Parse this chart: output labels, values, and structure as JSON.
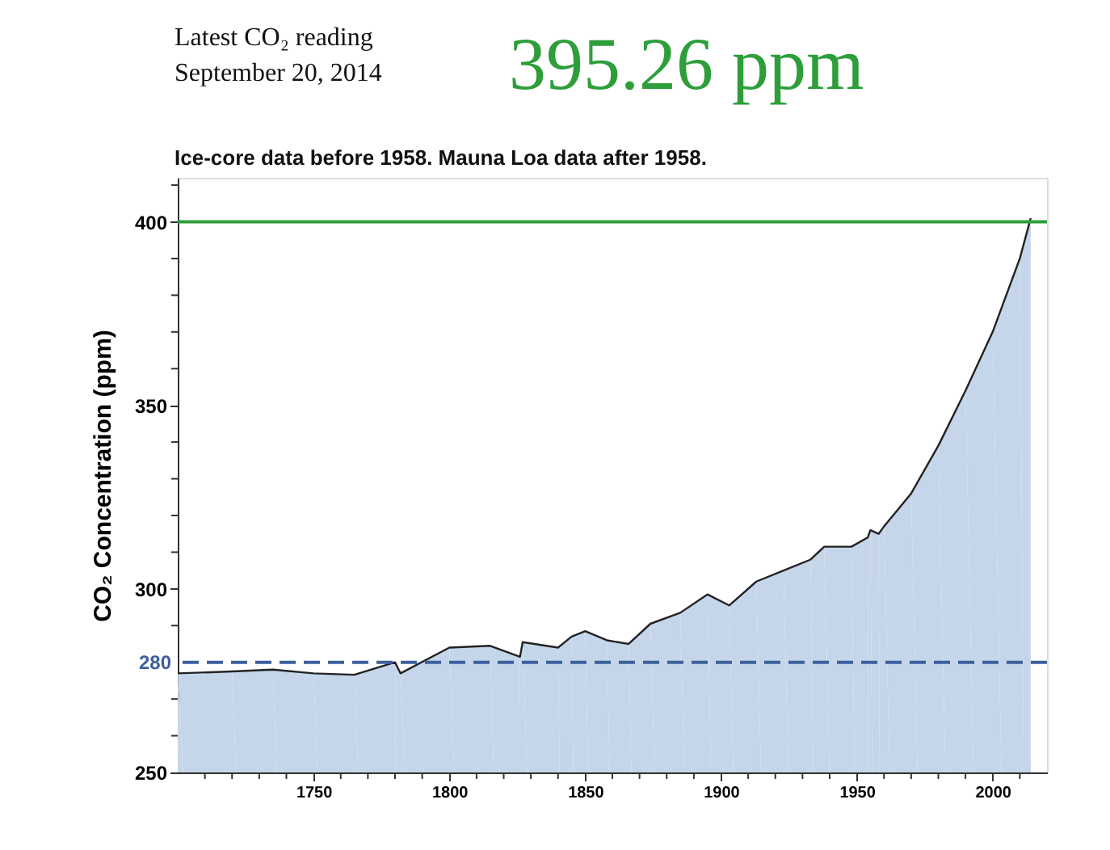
{
  "chart_data": {
    "type": "area",
    "title": "Latest CO₂ reading",
    "subtitle": "September 20, 2014",
    "annotations": [
      "395.26 ppm",
      "Ice-core data before 1958. Mauna Loa data after 1958."
    ],
    "ylabel": "CO₂ Concentration (ppm)",
    "x": [
      1700,
      1720,
      1735,
      1750,
      1765,
      1780,
      1782,
      1800,
      1815,
      1826,
      1827,
      1840,
      1845,
      1850,
      1858,
      1866,
      1874,
      1885,
      1895,
      1903,
      1913,
      1923,
      1933,
      1938,
      1948,
      1954,
      1955,
      1958,
      1960,
      1970,
      1980,
      1990,
      2000,
      2010,
      2014
    ],
    "series": [
      {
        "color": "#c5d6ea",
        "values": [
          277,
          277.5,
          278,
          277,
          276.6,
          280,
          277,
          284,
          284.5,
          281.5,
          285.5,
          284,
          287,
          288.5,
          286,
          285,
          290.5,
          293.5,
          298.5,
          295.5,
          302,
          305,
          308,
          311.5,
          311.5,
          314,
          316,
          315,
          317,
          326,
          339,
          354,
          370,
          390,
          401
        ]
      }
    ],
    "xlim": [
      1700,
      2020
    ],
    "ylim": [
      250,
      412
    ],
    "xticks": [
      {
        "value": 1710,
        "label": null
      },
      {
        "value": 1720,
        "label": null
      },
      {
        "value": 1730,
        "label": null
      },
      {
        "value": 1740,
        "label": null
      },
      1750,
      {
        "value": 1760,
        "label": null
      },
      {
        "value": 1770,
        "label": null
      },
      {
        "value": 1780,
        "label": null
      },
      {
        "value": 1790,
        "label": null
      },
      1800,
      {
        "value": 1810,
        "label": null
      },
      {
        "value": 1820,
        "label": null
      },
      {
        "value": 1830,
        "label": null
      },
      {
        "value": 1840,
        "label": null
      },
      1850,
      {
        "value": 1860,
        "label": null
      },
      {
        "value": 1870,
        "label": null
      },
      {
        "value": 1880,
        "label": null
      },
      {
        "value": 1890,
        "label": null
      },
      1900,
      {
        "value": 1910,
        "label": null
      },
      {
        "value": 1920,
        "label": null
      },
      {
        "value": 1930,
        "label": null
      },
      {
        "value": 1940,
        "label": null
      },
      1950,
      {
        "value": 1960,
        "label": null
      },
      {
        "value": 1970,
        "label": null
      },
      {
        "value": 1980,
        "label": null
      },
      {
        "value": 1990,
        "label": null
      },
      2000,
      {
        "value": 2010,
        "label": null
      }
    ],
    "yticks": [
      250,
      {
        "value": 260,
        "label": null
      },
      {
        "value": 270,
        "label": null
      },
      {
        "value": 290,
        "label": null
      },
      300,
      {
        "value": 310,
        "label": null
      },
      {
        "value": 320,
        "label": null
      },
      {
        "value": 330,
        "label": null
      },
      {
        "value": 340,
        "label": null
      },
      350,
      {
        "value": 360,
        "label": null
      },
      {
        "value": 370,
        "label": null
      },
      {
        "value": 380,
        "label": null
      },
      {
        "value": 390,
        "label": null
      },
      400,
      {
        "value": 410,
        "label": null
      }
    ],
    "ref_lines": [
      {
        "axis": "y",
        "value": 400,
        "label": null,
        "color": "#2e9e3a"
      },
      {
        "axis": "y",
        "value": 280,
        "label": "280",
        "color": "#3d5f9c",
        "line_style": "dashed"
      }
    ],
    "grid": false
  }
}
